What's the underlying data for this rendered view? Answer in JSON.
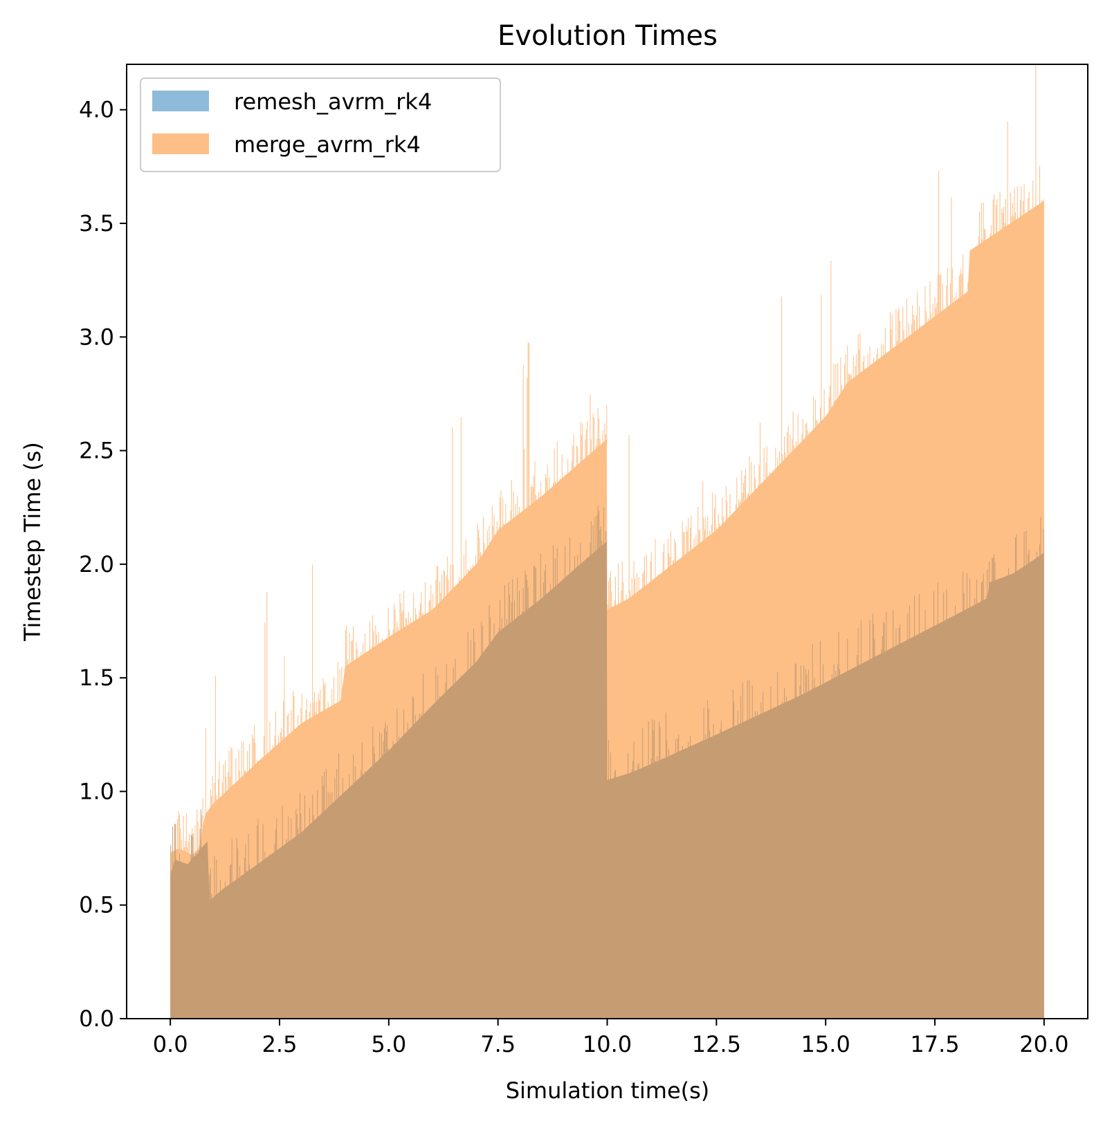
{
  "chart_data": {
    "type": "bar",
    "title": "Evolution Times",
    "xlabel": "Simulation time(s)",
    "ylabel": "Timestep Time (s)",
    "xlim": [
      -1.0,
      21.0
    ],
    "ylim": [
      0.0,
      4.2
    ],
    "xticks": [
      "0.0",
      "2.5",
      "5.0",
      "7.5",
      "10.0",
      "12.5",
      "15.0",
      "17.5",
      "20.0"
    ],
    "yticks": [
      "0.0",
      "0.5",
      "1.0",
      "1.5",
      "2.0",
      "2.5",
      "3.0",
      "3.5",
      "4.0"
    ],
    "grid": false,
    "legend_position": "top-left",
    "overlap_color": "#c69c72",
    "series": [
      {
        "name": "remesh_avrm_rk4",
        "color": "#8fbbda",
        "x": [
          0.0,
          0.1,
          0.4,
          0.6,
          0.85,
          0.9,
          1.2,
          2.0,
          3.0,
          4.0,
          5.0,
          6.0,
          7.0,
          7.5,
          8.5,
          9.5,
          9.99,
          10.0,
          10.5,
          11.0,
          12.5,
          14.5,
          16.0,
          17.5,
          18.7,
          18.75,
          19.3,
          20.0
        ],
        "values": [
          0.63,
          0.7,
          0.68,
          0.73,
          0.78,
          0.52,
          0.57,
          0.68,
          0.82,
          1.0,
          1.18,
          1.38,
          1.57,
          1.7,
          1.85,
          2.02,
          2.1,
          1.05,
          1.08,
          1.12,
          1.25,
          1.43,
          1.58,
          1.73,
          1.85,
          1.92,
          1.96,
          2.05
        ]
      },
      {
        "name": "merge_avrm_rk4",
        "color": "#fdbf86",
        "x": [
          0.0,
          0.2,
          0.5,
          0.65,
          0.8,
          1.0,
          2.0,
          3.0,
          3.9,
          4.0,
          5.0,
          6.0,
          6.5,
          7.0,
          7.5,
          8.5,
          9.99,
          10.0,
          10.5,
          12.5,
          15.0,
          15.5,
          18.25,
          18.3,
          20.0
        ],
        "values": [
          0.73,
          0.75,
          0.72,
          0.75,
          0.9,
          0.95,
          1.13,
          1.3,
          1.4,
          1.55,
          1.68,
          1.8,
          1.9,
          2.0,
          2.15,
          2.3,
          2.55,
          1.8,
          1.85,
          2.15,
          2.65,
          2.8,
          3.2,
          3.38,
          3.6
        ]
      }
    ]
  }
}
